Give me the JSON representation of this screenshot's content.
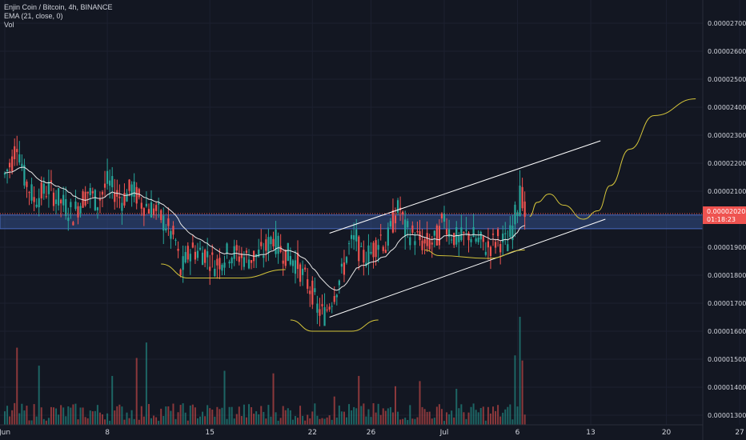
{
  "legend": {
    "symbol": "Enjin Coin / Bitcoin, 4h, BINANCE",
    "ema": "EMA (21, close, 0)",
    "vol": "Vol"
  },
  "price_tag": {
    "price": "0.00002020",
    "countdown": "01:18:23"
  },
  "colors": {
    "background": "#131722",
    "up": "#26a69a",
    "down": "#ef5350",
    "ema": "#e8e8e8",
    "channel": "#ffffff",
    "projection": "#d4c43a",
    "zone": "#3a5aa0",
    "price_tag": "#ef5350"
  },
  "chart_data": {
    "type": "candlestick",
    "title": "Enjin Coin / Bitcoin, 4h, BINANCE",
    "x_ticks": [
      "Jun",
      "8",
      "15",
      "22",
      "26",
      "Jul",
      "6",
      "13",
      "20",
      "27"
    ],
    "y_ticks": [
      "0.00001300",
      "0.00001400",
      "0.00001500",
      "0.00001600",
      "0.00001700",
      "0.00001800",
      "0.00001900",
      "0.00002000",
      "0.00002100",
      "0.00002200",
      "0.00002300",
      "0.00002400",
      "0.00002500",
      "0.00002600",
      "0.00002700"
    ],
    "ylim": [
      1.265e-05,
      2.785e-05
    ],
    "date_range": [
      "2020-06-01",
      "2020-07-14"
    ],
    "candle_interval": "4h",
    "close_path": [
      [
        0,
        2.16e-05
      ],
      [
        3,
        2.21e-05
      ],
      [
        5,
        2.28e-05
      ],
      [
        8,
        2.15e-05
      ],
      [
        12,
        2.07e-05
      ],
      [
        18,
        2.11e-05
      ],
      [
        22,
        2.07e-05
      ],
      [
        28,
        2.02e-05
      ],
      [
        34,
        2.1e-05
      ],
      [
        38,
        2.06e-05
      ],
      [
        42,
        2.13e-05
      ],
      [
        48,
        2.07e-05
      ],
      [
        52,
        2.11e-05
      ],
      [
        56,
        2.06e-05
      ],
      [
        62,
        2.03e-05
      ],
      [
        66,
        1.98e-05
      ],
      [
        70,
        1.92e-05
      ],
      [
        72,
        1.81e-05
      ],
      [
        76,
        1.89e-05
      ],
      [
        82,
        1.88e-05
      ],
      [
        86,
        1.84e-05
      ],
      [
        92,
        1.88e-05
      ],
      [
        100,
        1.86e-05
      ],
      [
        106,
        1.88e-05
      ],
      [
        110,
        1.94e-05
      ],
      [
        112,
        1.9e-05
      ],
      [
        116,
        1.87e-05
      ],
      [
        120,
        1.84e-05
      ],
      [
        122,
        1.8e-05
      ],
      [
        126,
        1.74e-05
      ],
      [
        128,
        1.68e-05
      ],
      [
        131,
        1.66e-05
      ],
      [
        134,
        1.72e-05
      ],
      [
        138,
        1.8e-05
      ],
      [
        141,
        1.9e-05
      ],
      [
        144,
        1.93e-05
      ],
      [
        146,
        1.86e-05
      ],
      [
        150,
        1.88e-05
      ],
      [
        154,
        1.94e-05
      ],
      [
        156,
        1.9e-05
      ],
      [
        160,
        2.02e-05
      ],
      [
        162,
        2.04e-05
      ],
      [
        164,
        1.96e-05
      ],
      [
        168,
        1.94e-05
      ],
      [
        172,
        1.91e-05
      ],
      [
        176,
        1.92e-05
      ],
      [
        178,
        1.95e-05
      ],
      [
        180,
        2.01e-05
      ],
      [
        182,
        1.96e-05
      ],
      [
        186,
        1.92e-05
      ],
      [
        190,
        1.95e-05
      ],
      [
        194,
        1.92e-05
      ],
      [
        198,
        1.9e-05
      ],
      [
        202,
        1.93e-05
      ],
      [
        206,
        1.91e-05
      ],
      [
        208,
        1.97e-05
      ],
      [
        210,
        2.05e-05
      ],
      [
        211,
        2.15e-05
      ],
      [
        212,
        2.08e-05
      ],
      [
        213,
        2.02e-05
      ]
    ],
    "volume_max": 420,
    "volume_spikes": [
      [
        5,
        300
      ],
      [
        14,
        230
      ],
      [
        44,
        190
      ],
      [
        54,
        260
      ],
      [
        58,
        320
      ],
      [
        90,
        210
      ],
      [
        110,
        200
      ],
      [
        135,
        110
      ],
      [
        145,
        190
      ],
      [
        160,
        150
      ],
      [
        170,
        170
      ],
      [
        185,
        140
      ],
      [
        209,
        270
      ],
      [
        211,
        420
      ],
      [
        212,
        250
      ]
    ],
    "annotations": {
      "support_zone": {
        "y_range": [
          1.966e-05,
          2.015e-05
        ],
        "x_range": [
          0,
          248
        ]
      },
      "channel_upper": [
        [
          1.95e-05,
          133
        ],
        [
          2.28e-05,
          244
        ]
      ],
      "channel_lower": [
        [
          1.65e-05,
          133
        ],
        [
          2e-05,
          246
        ]
      ],
      "projection": [
        [
          2.01e-05,
          215
        ],
        [
          2.06e-05,
          218
        ],
        [
          2.09e-05,
          223
        ],
        [
          2.05e-05,
          229
        ],
        [
          2e-05,
          237
        ],
        [
          2.03e-05,
          243
        ],
        [
          2.12e-05,
          248
        ],
        [
          2.25e-05,
          256
        ],
        [
          2.37e-05,
          266
        ],
        [
          2.43e-05,
          283
        ]
      ],
      "arc_1": [
        [
          1.84e-05,
          64
        ],
        [
          1.79e-05,
          75
        ],
        [
          1.79e-05,
          97
        ],
        [
          1.82e-05,
          115
        ]
      ],
      "arc_2": [
        [
          1.64e-05,
          117
        ],
        [
          1.6e-05,
          126
        ],
        [
          1.6e-05,
          142
        ],
        [
          1.64e-05,
          153
        ]
      ],
      "arc_3": [
        [
          1.89e-05,
          172
        ],
        [
          1.87e-05,
          178
        ],
        [
          1.86e-05,
          198
        ],
        [
          1.89e-05,
          213
        ]
      ]
    }
  }
}
